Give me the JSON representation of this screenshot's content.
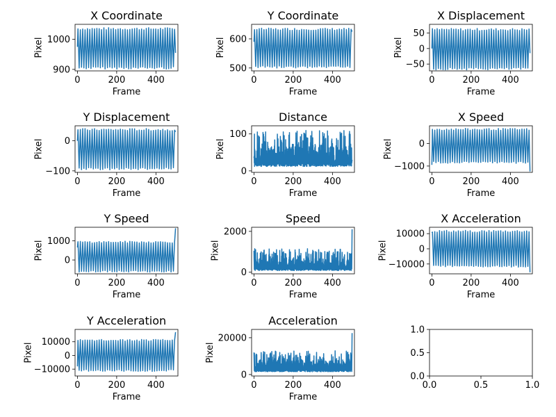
{
  "chart_data": [
    {
      "type": "line",
      "title": "X Coordinate",
      "xlabel": "Frame",
      "ylabel": "Pixel",
      "xlim": [
        -12,
        512
      ],
      "ylim": [
        895,
        1050
      ],
      "xticks": [
        "0",
        "200",
        "400"
      ],
      "xtick_values": [
        0,
        200,
        400
      ],
      "yticks": [
        "900",
        "1000"
      ],
      "ytick_values": [
        900,
        1000
      ],
      "series": [
        {
          "color": "#1f77b4",
          "pattern": "oscillation",
          "x_range": [
            0,
            500
          ],
          "period": 12,
          "center": 970,
          "amplitude": 65,
          "start": 975,
          "end": 955
        }
      ]
    },
    {
      "type": "line",
      "title": "Y Coordinate",
      "xlabel": "Frame",
      "ylabel": "Pixel",
      "xlim": [
        -12,
        512
      ],
      "ylim": [
        490,
        650
      ],
      "xticks": [
        "0",
        "200",
        "400"
      ],
      "xtick_values": [
        0,
        200,
        400
      ],
      "yticks": [
        "500",
        "600"
      ],
      "ytick_values": [
        500,
        600
      ],
      "series": [
        {
          "color": "#1f77b4",
          "pattern": "oscillation",
          "x_range": [
            0,
            500
          ],
          "period": 12,
          "center": 568,
          "amplitude": 65,
          "start": 590,
          "end": 625
        }
      ]
    },
    {
      "type": "line",
      "title": "X Displacement",
      "xlabel": "Frame",
      "ylabel": "Pixel",
      "xlim": [
        -12,
        512
      ],
      "ylim": [
        -72,
        78
      ],
      "xticks": [
        "0",
        "200",
        "400"
      ],
      "xtick_values": [
        0,
        200,
        400
      ],
      "yticks": [
        "−50",
        "0",
        "50"
      ],
      "ytick_values": [
        -50,
        0,
        50
      ],
      "series": [
        {
          "color": "#1f77b4",
          "pattern": "oscillation",
          "x_range": [
            0,
            500
          ],
          "period": 12,
          "center": -2,
          "amplitude": 63,
          "start": 0,
          "end": -15
        }
      ]
    },
    {
      "type": "line",
      "title": "Y Displacement",
      "xlabel": "Frame",
      "ylabel": "Pixel",
      "xlim": [
        -12,
        512
      ],
      "ylim": [
        -105,
        50
      ],
      "xticks": [
        "0",
        "200",
        "400"
      ],
      "xtick_values": [
        0,
        200,
        400
      ],
      "yticks": [
        "−100",
        "0"
      ],
      "ytick_values": [
        -100,
        0
      ],
      "series": [
        {
          "color": "#1f77b4",
          "pattern": "oscillation",
          "x_range": [
            0,
            500
          ],
          "period": 12,
          "center": -28,
          "amplitude": 65,
          "start": 0,
          "end": 30
        }
      ]
    },
    {
      "type": "line",
      "title": "Distance",
      "xlabel": "Frame",
      "ylabel": "Pixel",
      "xlim": [
        -12,
        512
      ],
      "ylim": [
        -4,
        122
      ],
      "xticks": [
        "0",
        "200",
        "400"
      ],
      "xtick_values": [
        0,
        200,
        400
      ],
      "yticks": [
        "0",
        "100"
      ],
      "ytick_values": [
        0,
        100
      ],
      "series": [
        {
          "color": "#1f77b4",
          "pattern": "dense",
          "x_range": [
            0,
            500
          ],
          "period": 6,
          "low": 12,
          "high": 110,
          "start": 35,
          "end": 30
        }
      ]
    },
    {
      "type": "line",
      "title": "X Speed",
      "xlabel": "Frame",
      "ylabel": "Pixel",
      "xlim": [
        -12,
        512
      ],
      "ylim": [
        -1280,
        780
      ],
      "xticks": [
        "0",
        "200",
        "400"
      ],
      "xtick_values": [
        0,
        200,
        400
      ],
      "yticks": [
        "−1000",
        "0"
      ],
      "ytick_values": [
        -1000,
        0
      ],
      "series": [
        {
          "color": "#1f77b4",
          "pattern": "oscillation",
          "x_range": [
            0,
            500
          ],
          "period": 12,
          "center": -110,
          "amplitude": 730,
          "start": -950,
          "end": -1240
        }
      ]
    },
    {
      "type": "line",
      "title": "Y Speed",
      "xlabel": "Frame",
      "ylabel": "Pixel",
      "xlim": [
        -12,
        512
      ],
      "ylim": [
        -720,
        1700
      ],
      "xticks": [
        "0",
        "200",
        "400"
      ],
      "xtick_values": [
        0,
        200,
        400
      ],
      "yticks": [
        "0",
        "1000"
      ],
      "ytick_values": [
        0,
        1000
      ],
      "series": [
        {
          "color": "#1f77b4",
          "pattern": "oscillation",
          "x_range": [
            0,
            500
          ],
          "period": 12,
          "center": 170,
          "amplitude": 760,
          "start": 650,
          "end": 1650
        }
      ]
    },
    {
      "type": "line",
      "title": "Speed",
      "xlabel": "Frame",
      "ylabel": "Pixel",
      "xlim": [
        -12,
        512
      ],
      "ylim": [
        -80,
        2200
      ],
      "xticks": [
        "0",
        "200",
        "400"
      ],
      "xtick_values": [
        0,
        200,
        400
      ],
      "yticks": [
        "0",
        "2000"
      ],
      "ytick_values": [
        0,
        2000
      ],
      "series": [
        {
          "color": "#1f77b4",
          "pattern": "dense",
          "x_range": [
            0,
            500
          ],
          "period": 6,
          "low": 80,
          "high": 1150,
          "start": 1050,
          "end": 2100
        }
      ]
    },
    {
      "type": "line",
      "title": "X Acceleration",
      "xlabel": "Frame",
      "ylabel": "Pixel",
      "xlim": [
        -12,
        512
      ],
      "ylim": [
        -16500,
        14200
      ],
      "xticks": [
        "0",
        "200",
        "400"
      ],
      "xtick_values": [
        0,
        200,
        400
      ],
      "yticks": [
        "−10000",
        "0",
        "10000"
      ],
      "ytick_values": [
        -10000,
        0,
        10000
      ],
      "series": [
        {
          "color": "#1f77b4",
          "pattern": "oscillation",
          "x_range": [
            0,
            500
          ],
          "period": 12,
          "center": 0,
          "amplitude": 11500,
          "start": 10500,
          "end": -15500
        }
      ]
    },
    {
      "type": "line",
      "title": "Y Acceleration",
      "xlabel": "Frame",
      "ylabel": "Pixel",
      "xlim": [
        -12,
        512
      ],
      "ylim": [
        -15000,
        19000
      ],
      "xticks": [
        "0",
        "200",
        "400"
      ],
      "xtick_values": [
        0,
        200,
        400
      ],
      "yticks": [
        "−10000",
        "0",
        "10000"
      ],
      "ytick_values": [
        -10000,
        0,
        10000
      ],
      "series": [
        {
          "color": "#1f77b4",
          "pattern": "oscillation",
          "x_range": [
            0,
            500
          ],
          "period": 12,
          "center": 0,
          "amplitude": 11000,
          "start": -8000,
          "end": 17000
        }
      ]
    },
    {
      "type": "line",
      "title": "Acceleration",
      "xlabel": "Frame",
      "ylabel": "Pixel",
      "xlim": [
        -12,
        512
      ],
      "ylim": [
        -800,
        24500
      ],
      "xticks": [
        "0",
        "200",
        "400"
      ],
      "xtick_values": [
        0,
        200,
        400
      ],
      "yticks": [
        "0",
        "20000"
      ],
      "ytick_values": [
        0,
        20000
      ],
      "series": [
        {
          "color": "#1f77b4",
          "pattern": "dense",
          "x_range": [
            0,
            500
          ],
          "period": 6,
          "low": 1500,
          "high": 13000,
          "start": 12000,
          "end": 22500
        }
      ]
    },
    {
      "type": "line",
      "title": "",
      "xlabel": "",
      "ylabel": "",
      "xlim": [
        0,
        1
      ],
      "ylim": [
        0,
        1
      ],
      "xticks": [
        "0.0",
        "0.5",
        "1.0"
      ],
      "xtick_values": [
        0,
        0.5,
        1
      ],
      "yticks": [
        "0.0",
        "0.5",
        "1.0"
      ],
      "ytick_values": [
        0,
        0.5,
        1
      ],
      "series": []
    }
  ]
}
